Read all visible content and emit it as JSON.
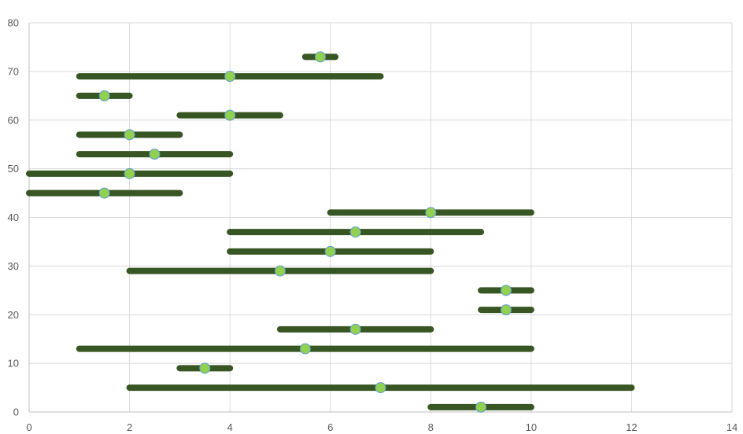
{
  "chart_data": {
    "type": "scatter",
    "title": "",
    "xlabel": "",
    "ylabel": "",
    "xlim": [
      0,
      14
    ],
    "ylim": [
      0,
      80
    ],
    "x_ticks": [
      "0",
      "2",
      "4",
      "6",
      "8",
      "10",
      "12",
      "14"
    ],
    "y_ticks": [
      "0",
      "10",
      "20",
      "30",
      "40",
      "50",
      "60",
      "70",
      "80"
    ],
    "grid": true,
    "legend": "none",
    "colors": {
      "bar": "#375623",
      "point_fill": "#92D050",
      "point_stroke": "#5B9BD5",
      "grid": "#D9D9D9",
      "axis": "#BFBFBF"
    },
    "points": [
      {
        "x": 9,
        "y": 1,
        "x_start": 8,
        "x_end": 10
      },
      {
        "x": 7,
        "y": 5,
        "x_start": 2,
        "x_end": 12
      },
      {
        "x": 3.5,
        "y": 9,
        "x_start": 3,
        "x_end": 4
      },
      {
        "x": 5.5,
        "y": 13,
        "x_start": 1,
        "x_end": 10
      },
      {
        "x": 6.5,
        "y": 17,
        "x_start": 5,
        "x_end": 8
      },
      {
        "x": 9.5,
        "y": 21,
        "x_start": 9,
        "x_end": 10
      },
      {
        "x": 9.5,
        "y": 25,
        "x_start": 9,
        "x_end": 10
      },
      {
        "x": 5,
        "y": 29,
        "x_start": 2,
        "x_end": 8
      },
      {
        "x": 6,
        "y": 33,
        "x_start": 4,
        "x_end": 8
      },
      {
        "x": 6.5,
        "y": 37,
        "x_start": 4,
        "x_end": 9
      },
      {
        "x": 8,
        "y": 41,
        "x_start": 6,
        "x_end": 10
      },
      {
        "x": 1.5,
        "y": 45,
        "x_start": 0,
        "x_end": 3
      },
      {
        "x": 2,
        "y": 49,
        "x_start": 0,
        "x_end": 4
      },
      {
        "x": 2.5,
        "y": 53,
        "x_start": 1,
        "x_end": 4
      },
      {
        "x": 2,
        "y": 57,
        "x_start": 1,
        "x_end": 3
      },
      {
        "x": 4,
        "y": 61,
        "x_start": 3,
        "x_end": 5
      },
      {
        "x": 1.5,
        "y": 65,
        "x_start": 1,
        "x_end": 2
      },
      {
        "x": 4,
        "y": 69,
        "x_start": 1,
        "x_end": 7
      },
      {
        "x": 5.8,
        "y": 73,
        "x_start": 5.5,
        "x_end": 6.1
      }
    ]
  }
}
